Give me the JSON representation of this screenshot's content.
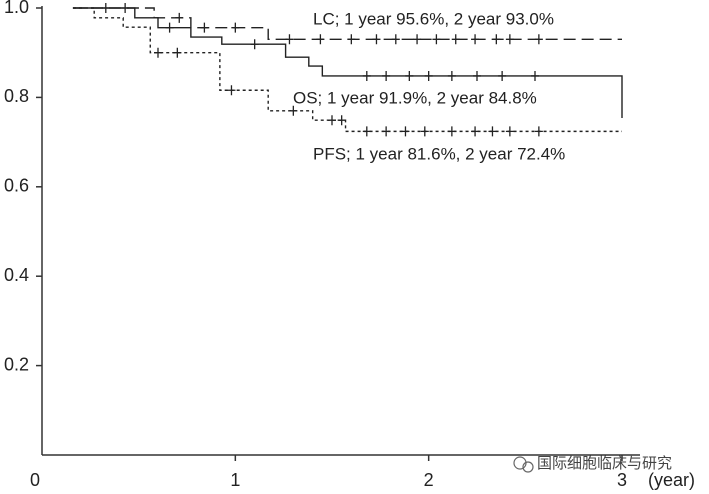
{
  "chart_data": {
    "type": "step",
    "x_label": "(year)",
    "watermark": "国际细胞临床与研究",
    "annotations": [
      "LC; 1 year 95.6%, 2 year 93.0%",
      "OS; 1 year 91.9%, 2 year  84.8%",
      "PFS; 1 year 81.6%, 2 year 72.4%"
    ],
    "xlim": [
      0,
      3
    ],
    "xticks": [
      0,
      1,
      2,
      3
    ],
    "ylim": [
      0,
      1
    ],
    "yticks": [
      0.2,
      0.4,
      0.6,
      0.8,
      {
        "value": 1,
        "label": "1.0"
      }
    ],
    "series": [
      {
        "name": "LC",
        "color": "#222222",
        "style": "dashed",
        "x": [
          0.16,
          0.58,
          0.77,
          1.17,
          3.0
        ],
        "values": [
          1.0,
          0.978,
          0.956,
          0.93,
          0.93
        ],
        "censor_x": [
          0.33,
          0.43,
          0.71,
          0.84,
          1.0,
          1.28,
          1.44,
          1.6,
          1.73,
          1.83,
          1.94,
          2.04,
          2.14,
          2.24,
          2.35,
          2.42,
          2.57
        ],
        "censor_y": [
          1.0,
          1.0,
          0.978,
          0.956,
          0.956,
          0.93,
          0.93,
          0.93,
          0.93,
          0.93,
          0.93,
          0.93,
          0.93,
          0.93,
          0.93,
          0.93,
          0.93
        ]
      },
      {
        "name": "OS",
        "color": "#222222",
        "style": "solid",
        "x": [
          0.16,
          0.48,
          0.6,
          0.77,
          0.93,
          1.26,
          1.38,
          1.45,
          3.0
        ],
        "values": [
          1.0,
          0.978,
          0.956,
          0.935,
          0.919,
          0.89,
          0.87,
          0.848,
          0.754
        ],
        "censor_x": [
          0.66,
          1.1,
          1.68,
          1.78,
          1.9,
          2.0,
          2.12,
          2.25,
          2.38,
          2.55
        ],
        "censor_y": [
          0.956,
          0.919,
          0.848,
          0.848,
          0.848,
          0.848,
          0.848,
          0.848,
          0.848,
          0.848
        ]
      },
      {
        "name": "PFS",
        "color": "#222222",
        "style": "dotted",
        "x": [
          0.16,
          0.27,
          0.42,
          0.56,
          0.92,
          1.17,
          1.4,
          1.57,
          3.0
        ],
        "values": [
          1.0,
          0.978,
          0.957,
          0.9,
          0.816,
          0.77,
          0.749,
          0.724,
          0.724
        ],
        "censor_x": [
          0.6,
          0.7,
          0.98,
          1.3,
          1.5,
          1.55,
          1.68,
          1.78,
          1.88,
          1.98,
          2.12,
          2.24,
          2.33,
          2.42,
          2.57
        ],
        "censor_y": [
          0.9,
          0.9,
          0.816,
          0.77,
          0.749,
          0.749,
          0.724,
          0.724,
          0.724,
          0.724,
          0.724,
          0.724,
          0.724,
          0.724,
          0.724
        ]
      }
    ]
  }
}
